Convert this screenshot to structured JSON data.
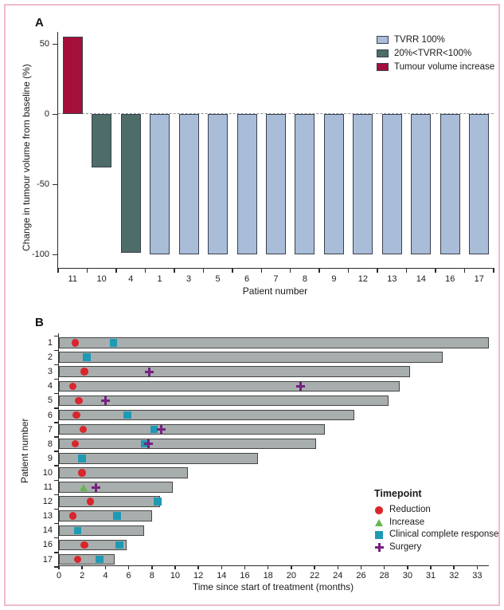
{
  "page": {
    "frame_color": "#f0bccb",
    "background": "#ffffff"
  },
  "panels": {
    "a": {
      "letter": "A"
    },
    "b": {
      "letter": "B"
    }
  },
  "chart_data": [
    {
      "id": "A",
      "type": "bar",
      "title": "",
      "xlabel": "Patient number",
      "ylabel": "Change in tumour volume from baseline (%)",
      "ylim": [
        -105,
        60
      ],
      "yticks": [
        50,
        0,
        -50,
        -100
      ],
      "zero_line": "dashed",
      "grid": false,
      "categories": [
        "11",
        "10",
        "4",
        "1",
        "3",
        "5",
        "6",
        "7",
        "8",
        "9",
        "12",
        "13",
        "14",
        "16",
        "17"
      ],
      "values": [
        55,
        -38,
        -99,
        -100,
        -100,
        -100,
        -100,
        -100,
        -100,
        -100,
        -100,
        -100,
        -100,
        -100,
        -100
      ],
      "groups": [
        "increase",
        "partial",
        "partial",
        "complete",
        "complete",
        "complete",
        "complete",
        "complete",
        "complete",
        "complete",
        "complete",
        "complete",
        "complete",
        "complete",
        "complete"
      ],
      "group_colors": {
        "complete": "#a9bcd8",
        "partial": "#4e6c68",
        "increase": "#a50f3b"
      },
      "bar_outline": "#39414f",
      "legend_position": "top-right",
      "legend": [
        {
          "group": "complete",
          "label": "TVRR 100%"
        },
        {
          "group": "partial",
          "label": "20%<TVRR<100%"
        },
        {
          "group": "increase",
          "label": "Tumour volume increase"
        }
      ]
    },
    {
      "id": "B",
      "type": "bar-horizontal",
      "title": "",
      "xlabel": "Time since start of treatment (months)",
      "ylabel": "Patient number",
      "xticks": [
        0,
        2,
        4,
        6,
        8,
        10,
        12,
        14,
        16,
        18,
        20,
        22,
        24,
        26,
        28,
        30,
        31,
        32,
        33
      ],
      "axis_note": "ticks evenly spaced: 2-month intervals up to 30, then 1-month intervals 31-33",
      "grid": false,
      "bar_color": "#a8aeae",
      "bar_outline": "#454545",
      "marker_colors": {
        "reduction": "#d9262c",
        "increase": "#66b54f",
        "ccr": "#1f9ab4",
        "surgery": "#76217f"
      },
      "legend_position": "bottom-right",
      "legend_title": "Timepoint",
      "legend": [
        {
          "type": "reduction",
          "label": "Reduction"
        },
        {
          "type": "increase",
          "label": "Increase"
        },
        {
          "type": "ccr",
          "label": "Clinical complete response"
        },
        {
          "type": "surgery",
          "label": "Surgery"
        }
      ],
      "bars": [
        {
          "patient": "1",
          "months": 33.5,
          "markers": [
            {
              "type": "reduction",
              "month": 1.4
            },
            {
              "type": "ccr",
              "month": 4.7
            }
          ]
        },
        {
          "patient": "2",
          "months": 31.5,
          "markers": [
            {
              "type": "ccr",
              "month": 2.4
            }
          ]
        },
        {
          "patient": "3",
          "months": 30.1,
          "markers": [
            {
              "type": "reduction",
              "month": 2.2
            },
            {
              "type": "surgery",
              "month": 7.8
            }
          ]
        },
        {
          "patient": "4",
          "months": 29.3,
          "markers": [
            {
              "type": "reduction",
              "month": 1.2
            },
            {
              "type": "surgery",
              "month": 20.8
            }
          ]
        },
        {
          "patient": "5",
          "months": 28.4,
          "markers": [
            {
              "type": "reduction",
              "month": 1.7
            },
            {
              "type": "surgery",
              "month": 4.0
            }
          ]
        },
        {
          "patient": "6",
          "months": 25.4,
          "markers": [
            {
              "type": "reduction",
              "month": 1.5
            },
            {
              "type": "ccr",
              "month": 5.9
            }
          ]
        },
        {
          "patient": "7",
          "months": 22.9,
          "markers": [
            {
              "type": "reduction",
              "month": 2.1
            },
            {
              "type": "ccr",
              "month": 8.2
            },
            {
              "type": "surgery",
              "month": 8.8
            }
          ]
        },
        {
          "patient": "8",
          "months": 22.1,
          "markers": [
            {
              "type": "reduction",
              "month": 1.4
            },
            {
              "type": "ccr",
              "month": 7.4
            },
            {
              "type": "surgery",
              "month": 7.7
            }
          ]
        },
        {
          "patient": "9",
          "months": 17.1,
          "markers": [
            {
              "type": "ccr",
              "month": 2.0
            }
          ]
        },
        {
          "patient": "10",
          "months": 11.1,
          "markers": [
            {
              "type": "reduction",
              "month": 2.0
            }
          ]
        },
        {
          "patient": "11",
          "months": 9.8,
          "markers": [
            {
              "type": "increase",
              "month": 2.1
            },
            {
              "type": "surgery",
              "month": 3.2
            }
          ]
        },
        {
          "patient": "12",
          "months": 8.7,
          "markers": [
            {
              "type": "reduction",
              "month": 2.7
            },
            {
              "type": "ccr",
              "month": 8.5
            }
          ]
        },
        {
          "patient": "13",
          "months": 8.0,
          "markers": [
            {
              "type": "reduction",
              "month": 1.2
            },
            {
              "type": "ccr",
              "month": 5.0
            }
          ]
        },
        {
          "patient": "14",
          "months": 7.3,
          "markers": [
            {
              "type": "ccr",
              "month": 1.6
            }
          ]
        },
        {
          "patient": "16",
          "months": 5.8,
          "markers": [
            {
              "type": "reduction",
              "month": 2.2
            },
            {
              "type": "ccr",
              "month": 5.2
            }
          ]
        },
        {
          "patient": "17",
          "months": 4.8,
          "markers": [
            {
              "type": "reduction",
              "month": 1.6
            },
            {
              "type": "ccr",
              "month": 3.5
            }
          ]
        }
      ]
    }
  ]
}
